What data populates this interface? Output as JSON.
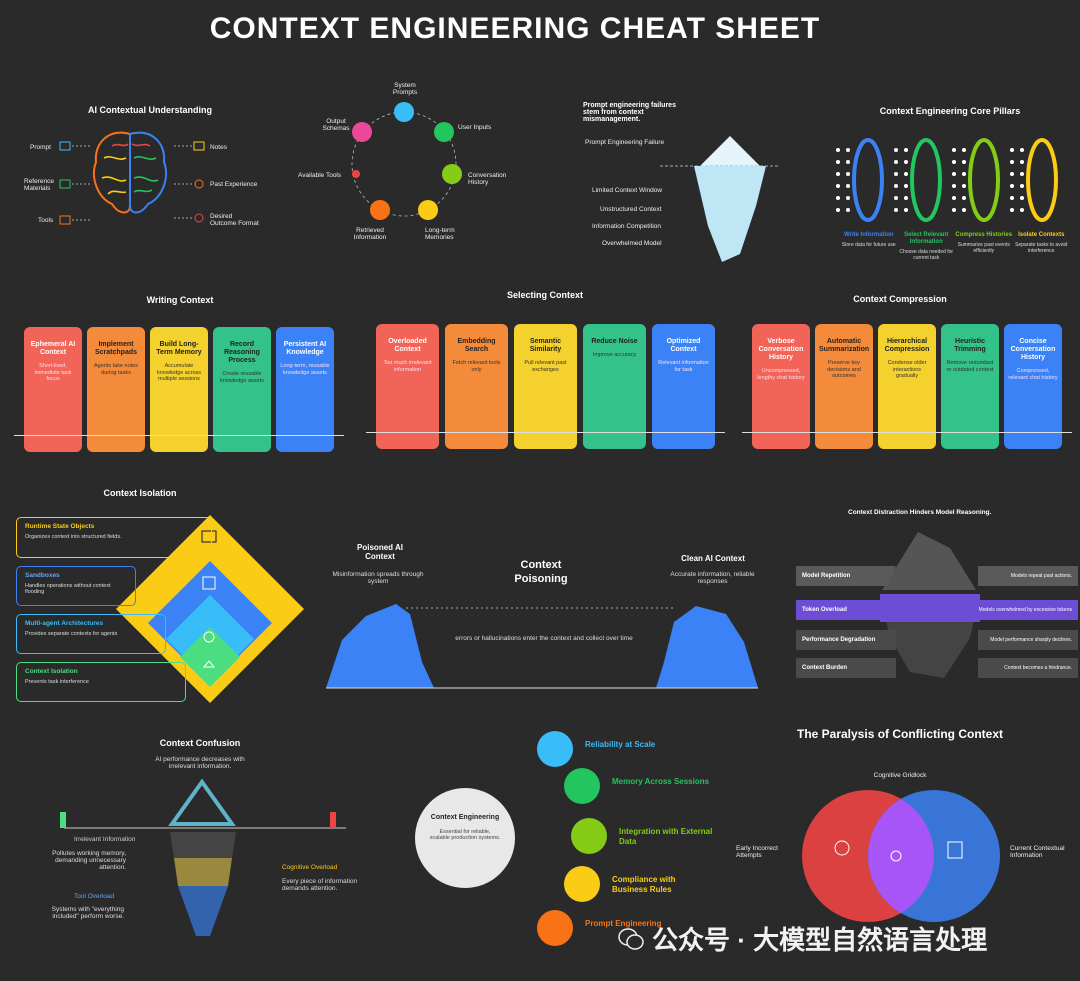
{
  "title": "CONTEXT ENGINEERING CHEAT SHEET",
  "ai_understanding": {
    "title": "AI Contextual Understanding",
    "left": [
      "Prompt",
      "Reference Materials",
      "Tools"
    ],
    "right": [
      "Notes",
      "Past Experience",
      "Desired Outcome Format"
    ]
  },
  "cycle": {
    "items": [
      "System Prompts",
      "User Inputs",
      "Conversation History",
      "Long-term Memories",
      "Retrieved Information",
      "Available Tools",
      "Output Schemas"
    ]
  },
  "iceberg_top": {
    "title": "Prompt engineering failures stem from context mismanagement.",
    "surface": "Prompt Engineering Failure",
    "below": [
      "Limited Context Window",
      "Unstructured Context",
      "Information Competition",
      "Overwhelmed Model"
    ]
  },
  "pillars": {
    "title": "Context Engineering Core Pillars",
    "items": [
      {
        "name": "Write Information",
        "desc": "Store data for future use",
        "color": "#3b82f6"
      },
      {
        "name": "Select Relevant Information",
        "desc": "Choose data needed for current task",
        "color": "#22c55e"
      },
      {
        "name": "Compress Histories",
        "desc": "Summarize past events efficiently",
        "color": "#84cc16"
      },
      {
        "name": "Isolate Contexts",
        "desc": "Separate tasks to avoid interference",
        "color": "#facc15"
      }
    ]
  },
  "writing": {
    "title": "Writing Context",
    "cards": [
      {
        "t": "Ephemeral AI Context",
        "d": "Short-lived, immediate task focus"
      },
      {
        "t": "Implement Scratchpads",
        "d": "Agents take notes during tasks"
      },
      {
        "t": "Build Long-Term Memory",
        "d": "Accumulate knowledge across multiple sessions"
      },
      {
        "t": "Record Reasoning Process",
        "d": "Create reusable knowledge assets"
      },
      {
        "t": "Persistent AI Knowledge",
        "d": "Long-term, reusable knowledge assets"
      }
    ]
  },
  "selecting": {
    "title": "Selecting Context",
    "cards": [
      {
        "t": "Overloaded Context",
        "d": "Too much irrelevant information"
      },
      {
        "t": "Embedding Search",
        "d": "Fetch relevant tools only"
      },
      {
        "t": "Semantic Similarity",
        "d": "Pull relevant past exchanges"
      },
      {
        "t": "Reduce Noise",
        "d": "Improve accuracy"
      },
      {
        "t": "Optimized Context",
        "d": "Relevant information for task"
      }
    ]
  },
  "compression": {
    "title": "Context Compression",
    "cards": [
      {
        "t": "Verbose Conversation History",
        "d": "Uncompressed, lengthy chat history"
      },
      {
        "t": "Automatic Summarization",
        "d": "Preserve key decisions and outcomes"
      },
      {
        "t": "Hierarchical Compression",
        "d": "Condense older interactions gradually"
      },
      {
        "t": "Heuristic Trimming",
        "d": "Remove redundant or outdated context"
      },
      {
        "t": "Concise Conversation History",
        "d": "Compressed, relevant chat history"
      }
    ]
  },
  "isolation": {
    "title": "Context Isolation",
    "items": [
      {
        "t": "Runtime State Objects",
        "d": "Organizes context into structured fields.",
        "color": "#facc15"
      },
      {
        "t": "Sandboxes",
        "d": "Handles operations without context flooding",
        "color": "#3b82f6"
      },
      {
        "t": "Multi-agent Architectures",
        "d": "Provides separate contexts for agents",
        "color": "#38bdf8"
      },
      {
        "t": "Context Isolation",
        "d": "Prevents task interference",
        "color": "#4ade80"
      }
    ]
  },
  "poisoning": {
    "left_title": "Poisoned AI Context",
    "left_desc": "Misinformation spreads through system",
    "center_title": "Context Poisoning",
    "right_title": "Clean AI Context",
    "right_desc": "Accurate information, reliable responses",
    "bridge": "errors or hallucinations enter the context and collect over time"
  },
  "distraction": {
    "title": "Context Distraction Hinders Model Reasoning.",
    "rows": [
      {
        "l": "Model Repetition",
        "r": "Models repeat past actions."
      },
      {
        "l": "Token Overload",
        "r": "Models overwhelmed by excessive tokens"
      },
      {
        "l": "Performance Degradation",
        "r": "Model performance sharply declines."
      },
      {
        "l": "Context Burden",
        "r": "Context becomes a hindrance."
      }
    ]
  },
  "confusion": {
    "title": "Context Confusion",
    "subtitle": "AI performance decreases with irrelevant information.",
    "irrelevant_t": "Irrelevant Information",
    "irrelevant_d": "Pollutes working memory, demanding unnecessary attention.",
    "cognitive_t": "Cognitive Overload",
    "cognitive_d": "Every piece of information demands attention.",
    "tool_t": "Tool Overload",
    "tool_d": "Systems with \"everything included\" perform worse."
  },
  "engineering": {
    "center_t": "Context Engineering",
    "center_d": "Essential for reliable, scalable production systems.",
    "items": [
      {
        "t": "Reliability at Scale",
        "color": "#38bdf8"
      },
      {
        "t": "Memory Across Sessions",
        "color": "#22c55e"
      },
      {
        "t": "Integration with External Data",
        "color": "#84cc16"
      },
      {
        "t": "Compliance with Business Rules",
        "color": "#facc15"
      },
      {
        "t": "Prompt Engineering",
        "color": "#f97316"
      }
    ]
  },
  "paralysis": {
    "title": "The Paralysis of Conflicting Context",
    "top": "Cognitive Gridlock",
    "left": "Early Incorrect Attempts",
    "right": "Current Contextual Information"
  },
  "watermark": "公众号 · 大模型自然语言处理"
}
